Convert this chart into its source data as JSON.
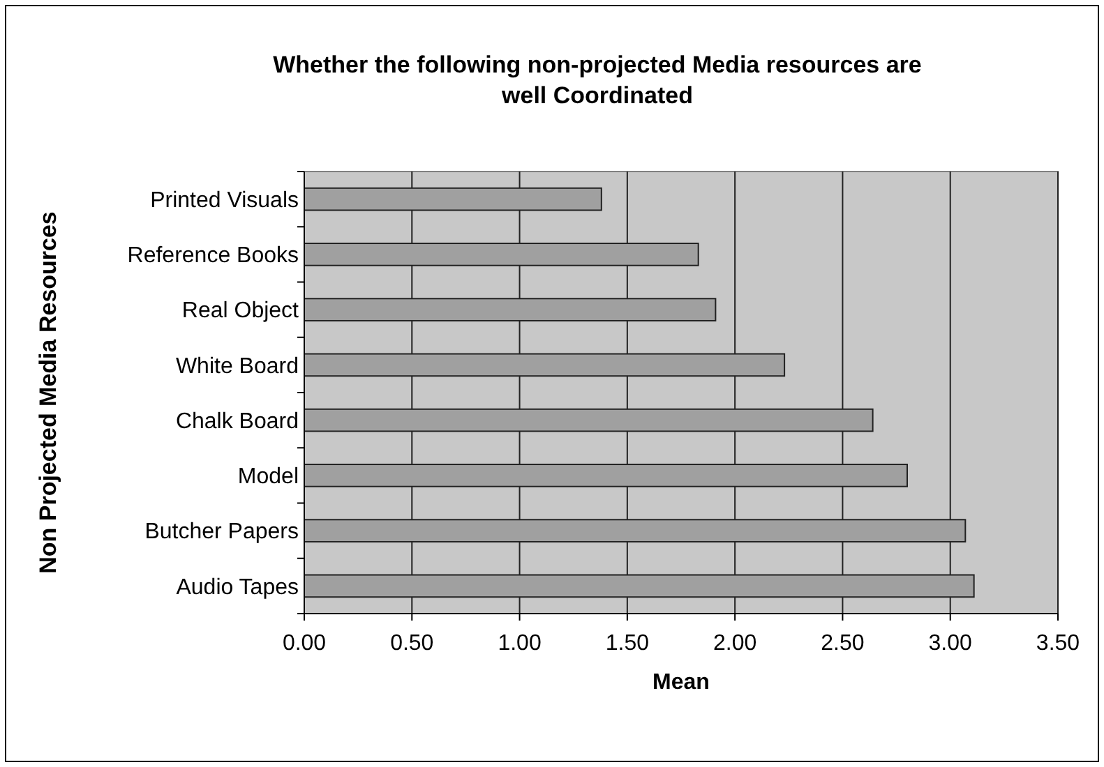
{
  "chart_data": {
    "type": "bar",
    "orientation": "horizontal",
    "title": "Whether the following non-projected Media resources are well Coordinated",
    "xlabel": "Mean",
    "ylabel": "Non Projected Media Resources",
    "categories": [
      "Printed Visuals",
      "Reference Books",
      "Real Object",
      "White Board",
      "Chalk Board",
      "Model",
      "Butcher Papers",
      "Audio Tapes"
    ],
    "values": [
      1.38,
      1.83,
      1.91,
      2.23,
      2.64,
      2.8,
      3.07,
      3.11
    ],
    "color": "#a0a0a0",
    "xlim": [
      0,
      3.5
    ],
    "xticks": [
      {
        "value": 0,
        "label": "0.00"
      },
      {
        "value": 0.5,
        "label": "0.50"
      },
      {
        "value": 1,
        "label": "1.00"
      },
      {
        "value": 1.5,
        "label": "1.50"
      },
      {
        "value": 2,
        "label": "2.00"
      },
      {
        "value": 2.5,
        "label": "2.50"
      },
      {
        "value": 3,
        "label": "3.00"
      },
      {
        "value": 3.5,
        "label": "3.50"
      }
    ],
    "grid": "x"
  }
}
